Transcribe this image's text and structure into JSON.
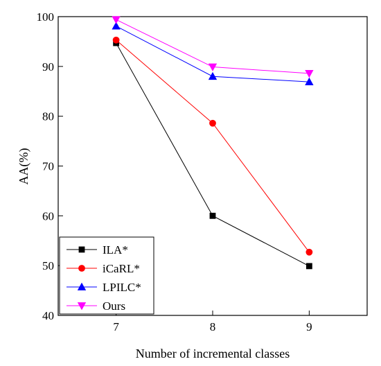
{
  "chart_data": {
    "type": "line",
    "title": "",
    "xlabel": "Number of incremental classes",
    "ylabel": "AA(%)",
    "x": [
      7,
      8,
      9
    ],
    "xlim": [
      6.4,
      9.6
    ],
    "ylim": [
      40,
      100
    ],
    "xticks": [
      7,
      8,
      9
    ],
    "yticks": [
      40,
      50,
      60,
      70,
      80,
      90,
      100
    ],
    "grid": false,
    "legend": "bottom-left",
    "series": [
      {
        "name": "ILA*",
        "values": [
          94.7,
          60.0,
          49.9
        ],
        "color": "#000000",
        "marker": "square"
      },
      {
        "name": "iCaRL*",
        "values": [
          95.3,
          78.6,
          52.7
        ],
        "color": "#ff0000",
        "marker": "circle"
      },
      {
        "name": "LPILC*",
        "values": [
          98.1,
          88.0,
          86.9
        ],
        "color": "#0000ff",
        "marker": "triangle-up"
      },
      {
        "name": "Ours",
        "values": [
          99.4,
          89.9,
          88.6
        ],
        "color": "#ff00ff",
        "marker": "triangle-down"
      }
    ]
  }
}
